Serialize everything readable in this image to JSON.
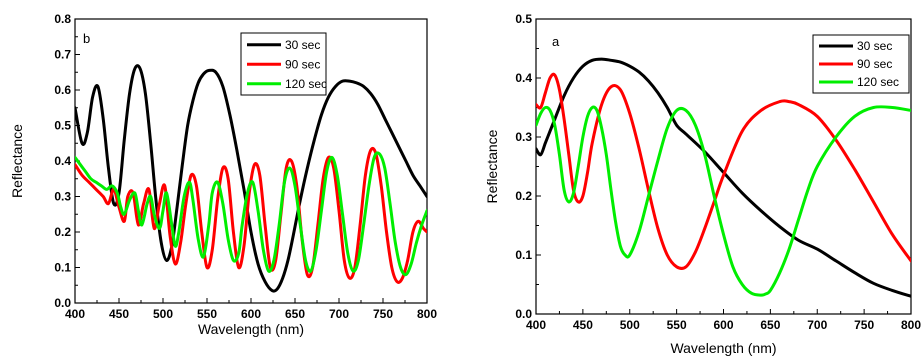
{
  "chart_data": [
    {
      "type": "line",
      "panel_label": "b",
      "xlabel": "Wavelength (nm)",
      "ylabel": "Reflectance",
      "xlim": [
        400,
        800
      ],
      "ylim": [
        0.0,
        0.8
      ],
      "xticks": [
        "400",
        "450",
        "500",
        "550",
        "600",
        "650",
        "700",
        "750",
        "800"
      ],
      "yticks": [
        "0.0",
        "0.1",
        "0.2",
        "0.3",
        "0.4",
        "0.5",
        "0.6",
        "0.7",
        "0.8"
      ],
      "legend_position": "top-right",
      "grid": false,
      "series": [
        {
          "name": "30 sec",
          "color": "#000000",
          "x": [
            400,
            408,
            414,
            420,
            426,
            432,
            438,
            444,
            450,
            456,
            462,
            468,
            474,
            480,
            486,
            492,
            498,
            504,
            510,
            516,
            522,
            528,
            534,
            540,
            546,
            552,
            560,
            568,
            576,
            584,
            592,
            600,
            608,
            616,
            624,
            630,
            636,
            642,
            648,
            656,
            664,
            672,
            680,
            688,
            696,
            704,
            712,
            720,
            728,
            736,
            744,
            752,
            760,
            768,
            776,
            784,
            792,
            800
          ],
          "y": [
            0.55,
            0.45,
            0.48,
            0.58,
            0.61,
            0.52,
            0.38,
            0.28,
            0.31,
            0.46,
            0.59,
            0.66,
            0.66,
            0.59,
            0.45,
            0.29,
            0.17,
            0.12,
            0.16,
            0.27,
            0.39,
            0.5,
            0.57,
            0.62,
            0.645,
            0.655,
            0.65,
            0.61,
            0.53,
            0.43,
            0.32,
            0.2,
            0.11,
            0.06,
            0.035,
            0.04,
            0.07,
            0.12,
            0.19,
            0.29,
            0.38,
            0.46,
            0.53,
            0.58,
            0.61,
            0.625,
            0.625,
            0.62,
            0.61,
            0.59,
            0.56,
            0.52,
            0.48,
            0.44,
            0.4,
            0.36,
            0.33,
            0.3
          ]
        },
        {
          "name": "90 sec",
          "color": "#ff0000",
          "x": [
            400,
            408,
            416,
            424,
            432,
            438,
            444,
            450,
            456,
            460,
            466,
            472,
            478,
            484,
            490,
            496,
            502,
            508,
            514,
            520,
            526,
            532,
            538,
            544,
            550,
            556,
            562,
            568,
            574,
            580,
            586,
            592,
            598,
            604,
            610,
            616,
            622,
            628,
            634,
            640,
            646,
            652,
            658,
            664,
            670,
            676,
            682,
            688,
            694,
            700,
            706,
            712,
            718,
            724,
            730,
            736,
            742,
            748,
            754,
            760,
            766,
            772,
            778,
            784,
            790,
            796,
            800
          ],
          "y": [
            0.39,
            0.36,
            0.34,
            0.32,
            0.3,
            0.28,
            0.32,
            0.27,
            0.23,
            0.3,
            0.31,
            0.22,
            0.28,
            0.32,
            0.21,
            0.28,
            0.33,
            0.19,
            0.11,
            0.17,
            0.28,
            0.36,
            0.33,
            0.2,
            0.1,
            0.15,
            0.29,
            0.38,
            0.35,
            0.2,
            0.1,
            0.16,
            0.31,
            0.39,
            0.36,
            0.22,
            0.1,
            0.12,
            0.25,
            0.38,
            0.4,
            0.33,
            0.18,
            0.08,
            0.1,
            0.22,
            0.35,
            0.41,
            0.38,
            0.26,
            0.12,
            0.07,
            0.1,
            0.22,
            0.36,
            0.43,
            0.42,
            0.33,
            0.2,
            0.1,
            0.06,
            0.07,
            0.12,
            0.2,
            0.23,
            0.21,
            0.2
          ]
        },
        {
          "name": "120 sec",
          "color": "#00ee00",
          "x": [
            400,
            406,
            412,
            418,
            424,
            430,
            436,
            442,
            448,
            452,
            456,
            462,
            468,
            472,
            476,
            482,
            486,
            490,
            496,
            500,
            504,
            510,
            514,
            518,
            524,
            530,
            534,
            540,
            546,
            552,
            556,
            562,
            568,
            574,
            580,
            586,
            590,
            596,
            602,
            608,
            614,
            620,
            626,
            632,
            638,
            644,
            650,
            656,
            662,
            668,
            674,
            680,
            686,
            692,
            698,
            704,
            710,
            716,
            722,
            728,
            734,
            740,
            746,
            752,
            758,
            764,
            770,
            776,
            782,
            788,
            794,
            800
          ],
          "y": [
            0.41,
            0.39,
            0.37,
            0.35,
            0.34,
            0.33,
            0.32,
            0.33,
            0.31,
            0.27,
            0.25,
            0.29,
            0.31,
            0.26,
            0.22,
            0.28,
            0.3,
            0.25,
            0.21,
            0.26,
            0.31,
            0.22,
            0.16,
            0.2,
            0.3,
            0.34,
            0.29,
            0.18,
            0.13,
            0.22,
            0.31,
            0.34,
            0.28,
            0.18,
            0.12,
            0.14,
            0.22,
            0.31,
            0.34,
            0.26,
            0.15,
            0.09,
            0.12,
            0.22,
            0.34,
            0.38,
            0.33,
            0.22,
            0.12,
            0.09,
            0.15,
            0.26,
            0.37,
            0.41,
            0.36,
            0.25,
            0.14,
            0.09,
            0.12,
            0.22,
            0.33,
            0.41,
            0.42,
            0.38,
            0.28,
            0.17,
            0.1,
            0.08,
            0.11,
            0.17,
            0.22,
            0.26
          ]
        }
      ]
    },
    {
      "type": "line",
      "panel_label": "a",
      "xlabel": "Wavelength (nm)",
      "ylabel": "Reflectance",
      "xlim": [
        400,
        800
      ],
      "ylim": [
        0.0,
        0.5
      ],
      "xticks": [
        "400",
        "450",
        "500",
        "550",
        "600",
        "650",
        "700",
        "750",
        "800"
      ],
      "yticks": [
        "0.0",
        "0.1",
        "0.2",
        "0.3",
        "0.4",
        "0.5"
      ],
      "legend_position": "top-right",
      "grid": false,
      "series": [
        {
          "name": "30 sec",
          "color": "#000000",
          "x": [
            400,
            405,
            410,
            415,
            420,
            430,
            440,
            450,
            460,
            470,
            480,
            490,
            500,
            510,
            520,
            530,
            540,
            550,
            560,
            580,
            600,
            620,
            640,
            660,
            680,
            700,
            720,
            740,
            760,
            780,
            800
          ],
          "y": [
            0.28,
            0.27,
            0.29,
            0.31,
            0.33,
            0.37,
            0.4,
            0.42,
            0.43,
            0.432,
            0.43,
            0.427,
            0.42,
            0.41,
            0.395,
            0.375,
            0.35,
            0.32,
            0.305,
            0.275,
            0.24,
            0.205,
            0.175,
            0.148,
            0.125,
            0.11,
            0.09,
            0.07,
            0.052,
            0.04,
            0.03
          ]
        },
        {
          "name": "90 sec",
          "color": "#ff0000",
          "x": [
            400,
            405,
            410,
            415,
            420,
            425,
            430,
            435,
            440,
            445,
            450,
            455,
            460,
            470,
            480,
            490,
            500,
            510,
            520,
            530,
            540,
            550,
            560,
            570,
            580,
            590,
            600,
            620,
            640,
            660,
            670,
            680,
            700,
            720,
            740,
            760,
            780,
            800
          ],
          "y": [
            0.355,
            0.35,
            0.375,
            0.4,
            0.405,
            0.38,
            0.33,
            0.27,
            0.21,
            0.19,
            0.2,
            0.24,
            0.29,
            0.355,
            0.385,
            0.38,
            0.34,
            0.28,
            0.21,
            0.145,
            0.1,
            0.08,
            0.08,
            0.105,
            0.145,
            0.19,
            0.235,
            0.31,
            0.345,
            0.36,
            0.36,
            0.355,
            0.335,
            0.295,
            0.245,
            0.19,
            0.135,
            0.09
          ]
        },
        {
          "name": "120 sec",
          "color": "#00ee00",
          "x": [
            400,
            405,
            410,
            415,
            420,
            425,
            430,
            435,
            440,
            445,
            450,
            455,
            460,
            465,
            470,
            475,
            480,
            485,
            490,
            495,
            500,
            510,
            520,
            530,
            540,
            550,
            560,
            570,
            580,
            590,
            600,
            610,
            620,
            630,
            640,
            645,
            650,
            660,
            670,
            680,
            690,
            700,
            720,
            740,
            760,
            780,
            800
          ],
          "y": [
            0.32,
            0.34,
            0.35,
            0.345,
            0.32,
            0.27,
            0.21,
            0.19,
            0.205,
            0.25,
            0.3,
            0.335,
            0.35,
            0.345,
            0.315,
            0.27,
            0.21,
            0.155,
            0.115,
            0.1,
            0.1,
            0.14,
            0.2,
            0.26,
            0.315,
            0.345,
            0.345,
            0.32,
            0.27,
            0.2,
            0.135,
            0.08,
            0.05,
            0.035,
            0.032,
            0.034,
            0.04,
            0.07,
            0.11,
            0.16,
            0.21,
            0.25,
            0.3,
            0.335,
            0.35,
            0.35,
            0.345
          ]
        }
      ]
    }
  ]
}
